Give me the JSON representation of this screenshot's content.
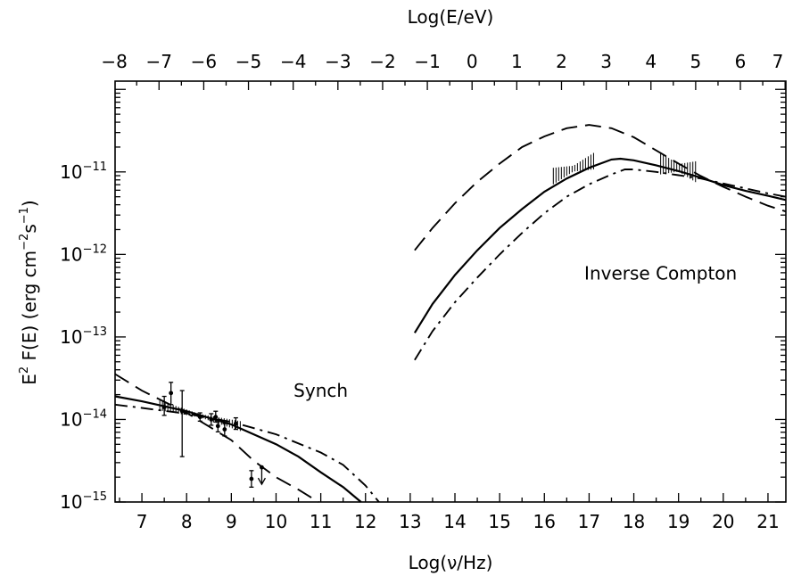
{
  "chart_data": {
    "type": "line",
    "xlabel": "Log(ν/Hz)",
    "x2label": "Log(E/eV)",
    "ylabel_main": "E",
    "ylabel_sup": "2",
    "ylabel_rest": " F(E)  (erg cm",
    "ylabel_sup2": "−2",
    "ylabel_s": "s",
    "ylabel_sup3": "−1",
    "ylabel_close": ")",
    "xlim": [
      6.4,
      21.4
    ],
    "ylim_log10": [
      -15,
      -9.9
    ],
    "y_scale": "log",
    "bottom_ticks": [
      "7",
      "8",
      "9",
      "10",
      "11",
      "12",
      "13",
      "14",
      "15",
      "16",
      "17",
      "18",
      "19",
      "20",
      "21"
    ],
    "top_ticks": [
      "−8",
      "−7",
      "−6",
      "−5",
      "−4",
      "−3",
      "−2",
      "−1",
      "0",
      "1",
      "2",
      "3",
      "4",
      "5",
      "6",
      "7"
    ],
    "y_ticks": [
      {
        "base": "10",
        "exp": "−11",
        "log10": -11
      },
      {
        "base": "10",
        "exp": "−12",
        "log10": -12
      },
      {
        "base": "10",
        "exp": "−13",
        "log10": -13
      },
      {
        "base": "10",
        "exp": "−14",
        "log10": -14
      },
      {
        "base": "10",
        "exp": "−15",
        "log10": -15
      }
    ],
    "annotations": [
      {
        "text": "Synch",
        "x": 11.0,
        "y_log10": -13.65
      },
      {
        "text": "Inverse Compton",
        "x": 18.6,
        "y_log10": -12.23
      }
    ],
    "series": [
      {
        "style": "solid",
        "segments": [
          [
            [
              6.4,
              -13.72
            ],
            [
              7,
              -13.78
            ],
            [
              8,
              -13.9
            ],
            [
              9,
              -14.06
            ],
            [
              10,
              -14.3
            ],
            [
              10.5,
              -14.45
            ],
            [
              11,
              -14.64
            ],
            [
              11.5,
              -14.82
            ],
            [
              11.9,
              -15.0
            ]
          ],
          [
            [
              13.1,
              -12.95
            ],
            [
              13.5,
              -12.6
            ],
            [
              14,
              -12.25
            ],
            [
              14.5,
              -11.95
            ],
            [
              15,
              -11.68
            ],
            [
              15.5,
              -11.45
            ],
            [
              16,
              -11.24
            ],
            [
              16.5,
              -11.08
            ],
            [
              17,
              -10.95
            ],
            [
              17.5,
              -10.85
            ],
            [
              17.7,
              -10.84
            ],
            [
              18,
              -10.86
            ],
            [
              18.5,
              -10.92
            ],
            [
              19,
              -10.99
            ],
            [
              19.5,
              -11.07
            ],
            [
              20,
              -11.16
            ],
            [
              20.5,
              -11.23
            ],
            [
              21,
              -11.29
            ],
            [
              21.4,
              -11.34
            ]
          ]
        ]
      },
      {
        "style": "dashed",
        "segments": [
          [
            [
              6.4,
              -13.45
            ],
            [
              7,
              -13.65
            ],
            [
              8,
              -13.92
            ],
            [
              9,
              -14.25
            ],
            [
              9.5,
              -14.5
            ],
            [
              10,
              -14.7
            ],
            [
              10.5,
              -14.85
            ],
            [
              10.95,
              -15.0
            ]
          ],
          [
            [
              13.1,
              -11.95
            ],
            [
              13.5,
              -11.68
            ],
            [
              14,
              -11.38
            ],
            [
              14.5,
              -11.12
            ],
            [
              15,
              -10.9
            ],
            [
              15.5,
              -10.7
            ],
            [
              16,
              -10.57
            ],
            [
              16.5,
              -10.47
            ],
            [
              17,
              -10.43
            ],
            [
              17.5,
              -10.47
            ],
            [
              18,
              -10.58
            ],
            [
              18.5,
              -10.74
            ],
            [
              19,
              -10.9
            ],
            [
              19.5,
              -11.05
            ],
            [
              20,
              -11.18
            ],
            [
              20.5,
              -11.3
            ],
            [
              21,
              -11.41
            ],
            [
              21.4,
              -11.48
            ]
          ]
        ]
      },
      {
        "style": "dashdot",
        "segments": [
          [
            [
              6.4,
              -13.82
            ],
            [
              7,
              -13.86
            ],
            [
              8,
              -13.93
            ],
            [
              9,
              -14.03
            ],
            [
              10,
              -14.18
            ],
            [
              11,
              -14.4
            ],
            [
              11.5,
              -14.55
            ],
            [
              12,
              -14.8
            ],
            [
              12.3,
              -15.0
            ]
          ],
          [
            [
              13.1,
              -13.28
            ],
            [
              13.5,
              -12.93
            ],
            [
              14,
              -12.58
            ],
            [
              14.5,
              -12.28
            ],
            [
              15,
              -12.0
            ],
            [
              15.5,
              -11.74
            ],
            [
              16,
              -11.5
            ],
            [
              16.5,
              -11.3
            ],
            [
              17,
              -11.15
            ],
            [
              17.5,
              -11.03
            ],
            [
              17.8,
              -10.97
            ],
            [
              18,
              -10.97
            ],
            [
              18.5,
              -11.0
            ],
            [
              19,
              -11.04
            ],
            [
              19.5,
              -11.08
            ],
            [
              20,
              -11.14
            ],
            [
              20.5,
              -11.2
            ],
            [
              21,
              -11.26
            ],
            [
              21.4,
              -11.3
            ]
          ]
        ]
      }
    ],
    "data_points": [
      {
        "x": 7.5,
        "y": -13.85,
        "lo": -13.95,
        "hi": -13.72
      },
      {
        "x": 7.65,
        "y": -13.68,
        "lo": -13.82,
        "hi": -13.55
      },
      {
        "x": 7.9,
        "y": -13.9,
        "lo": -14.45,
        "hi": -13.65
      },
      {
        "x": 8.3,
        "y": -13.97,
        "lo": -14.02,
        "hi": -13.92
      },
      {
        "x": 8.55,
        "y": -14.0,
        "lo": -14.07,
        "hi": -13.93
      },
      {
        "x": 8.65,
        "y": -13.97,
        "lo": -14.03,
        "hi": -13.9
      },
      {
        "x": 8.7,
        "y": -14.08,
        "lo": -14.15,
        "hi": -14.0
      },
      {
        "x": 8.85,
        "y": -14.12,
        "lo": -14.2,
        "hi": -14.05
      },
      {
        "x": 9.1,
        "y": -14.05,
        "lo": -14.12,
        "hi": -13.98
      },
      {
        "x": 9.45,
        "y": -14.72,
        "lo": -14.82,
        "hi": -14.62
      }
    ],
    "upper_limits": [
      {
        "x": 9.68,
        "y": -14.58
      }
    ],
    "bowties": [
      {
        "x_start": 7.4,
        "x_end": 9.2,
        "y_start": -13.83,
        "y_end": -14.08,
        "half_width": 0.06
      },
      {
        "x_start": 16.2,
        "x_end": 17.1,
        "y_start": -11.05,
        "y_end": -10.87,
        "half_width": 0.1
      },
      {
        "x_start": 18.6,
        "x_end": 19.4,
        "y_start": -10.9,
        "y_end": -11.0,
        "half_width": 0.13
      }
    ]
  }
}
